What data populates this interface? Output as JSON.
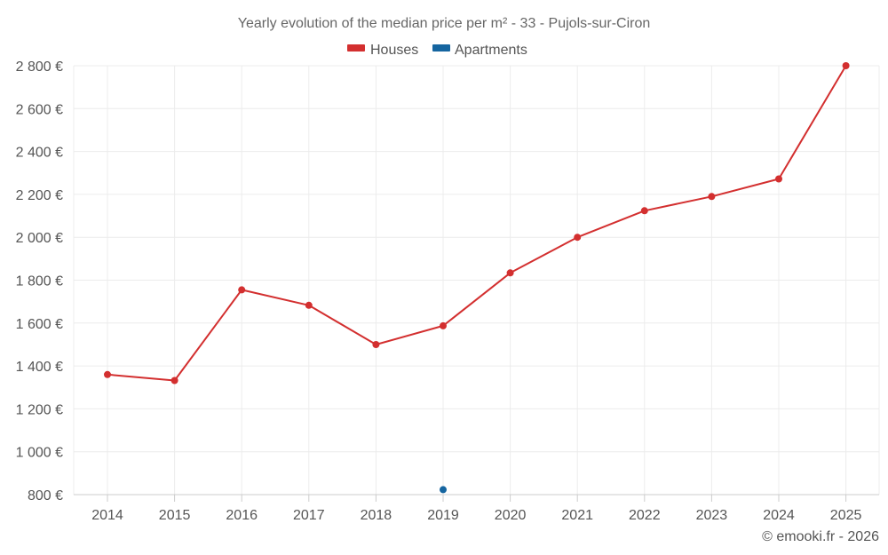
{
  "chart_data": {
    "type": "line",
    "title": "Yearly evolution of the median price per m² - 33 - Pujols-sur-Ciron",
    "categories": [
      "2014",
      "2015",
      "2016",
      "2017",
      "2018",
      "2019",
      "2020",
      "2021",
      "2022",
      "2023",
      "2024",
      "2025"
    ],
    "series": [
      {
        "name": "Houses",
        "color": "#d32f2f",
        "values": [
          1360,
          1332,
          1755,
          1683,
          1500,
          1587,
          1834,
          2000,
          2124,
          2190,
          2272,
          2800
        ]
      },
      {
        "name": "Apartments",
        "color": "#1565a0",
        "values": [
          null,
          null,
          null,
          null,
          null,
          823,
          null,
          null,
          null,
          null,
          null,
          null
        ]
      }
    ],
    "ylim": [
      800,
      2800
    ],
    "yticks": [
      800,
      1000,
      1200,
      1400,
      1600,
      1800,
      2000,
      2200,
      2400,
      2600,
      2800
    ],
    "ytick_labels": [
      "800 €",
      "1 000 €",
      "1 200 €",
      "1 400 €",
      "1 600 €",
      "1 800 €",
      "2 000 €",
      "2 200 €",
      "2 400 €",
      "2 600 €",
      "2 800 €"
    ],
    "xlabel": "",
    "ylabel": "",
    "grid": true,
    "legend_position": "top-center",
    "credit": "© emooki.fr - 2026"
  }
}
